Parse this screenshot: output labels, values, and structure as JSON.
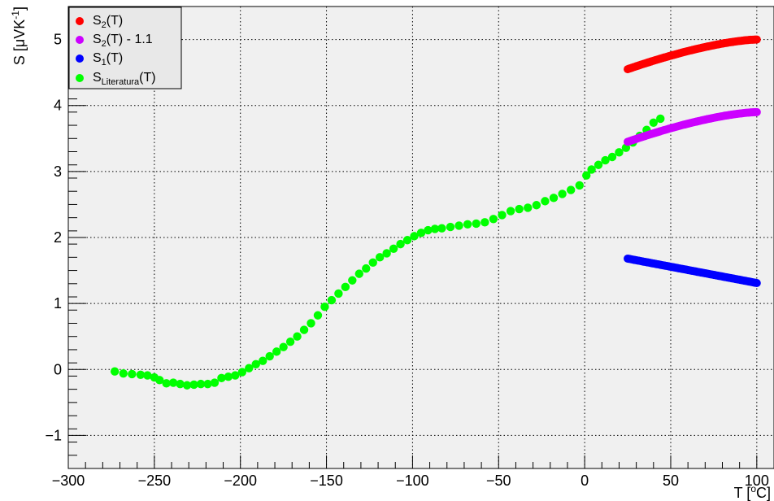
{
  "chart_data": {
    "type": "scatter",
    "xlim": [
      -300,
      110
    ],
    "ylim": [
      -1.5,
      5.5
    ],
    "x_ticks": [
      -300,
      -250,
      -200,
      -150,
      -100,
      -50,
      0,
      50,
      100
    ],
    "x_tick_labels": [
      "−300",
      "−250",
      "−200",
      "−150",
      "−100",
      "−50",
      "0",
      "50",
      "100"
    ],
    "y_ticks": [
      -1,
      0,
      1,
      2,
      3,
      4,
      5
    ],
    "y_tick_labels": [
      "−1",
      "0",
      "1",
      "2",
      "3",
      "4",
      "5"
    ],
    "grid": true,
    "legend_position": "top-left",
    "xlabel": {
      "main": "T [",
      "sup": "o",
      "tail": "C]"
    },
    "ylabel": {
      "main": "S [μVK",
      "sup": "-1",
      "tail": "]"
    },
    "series": [
      {
        "legend_main": "S",
        "legend_sub": "2",
        "legend_tail": "(T)",
        "color": "#ff0000",
        "generator": {
          "x_start": 25,
          "x_end": 100,
          "n": 90,
          "y_start": 4.55,
          "y_end": 5.0,
          "shape": "concave"
        },
        "points": []
      },
      {
        "legend_main": "S",
        "legend_sub": "2",
        "legend_tail": "(T) - 1.1",
        "color": "#cc00ff",
        "generator": {
          "x_start": 25,
          "x_end": 100,
          "n": 90,
          "y_start": 3.45,
          "y_end": 3.9,
          "shape": "concave"
        },
        "points": []
      },
      {
        "legend_main": "S",
        "legend_sub": "1",
        "legend_tail": "(T)",
        "color": "#0000ff",
        "generator": {
          "x_start": 25,
          "x_end": 100,
          "n": 90,
          "y_start": 1.68,
          "y_end": 1.31,
          "shape": "linear"
        },
        "points": []
      },
      {
        "legend_main": "S",
        "legend_sub": "Literatura",
        "legend_tail": "(T)",
        "color": "#00ff00",
        "points": [
          [
            -273,
            -0.03
          ],
          [
            -268,
            -0.06
          ],
          [
            -263,
            -0.07
          ],
          [
            -258,
            -0.08
          ],
          [
            -254,
            -0.09
          ],
          [
            -250,
            -0.12
          ],
          [
            -247,
            -0.16
          ],
          [
            -243,
            -0.21
          ],
          [
            -239,
            -0.2
          ],
          [
            -235,
            -0.22
          ],
          [
            -231,
            -0.24
          ],
          [
            -227,
            -0.23
          ],
          [
            -223,
            -0.22
          ],
          [
            -219,
            -0.22
          ],
          [
            -215,
            -0.2
          ],
          [
            -211,
            -0.13
          ],
          [
            -207,
            -0.11
          ],
          [
            -203,
            -0.09
          ],
          [
            -199,
            -0.04
          ],
          [
            -195,
            0.02
          ],
          [
            -191,
            0.08
          ],
          [
            -187,
            0.13
          ],
          [
            -183,
            0.2
          ],
          [
            -179,
            0.27
          ],
          [
            -175,
            0.34
          ],
          [
            -171,
            0.42
          ],
          [
            -167,
            0.5
          ],
          [
            -163,
            0.6
          ],
          [
            -159,
            0.7
          ],
          [
            -155,
            0.82
          ],
          [
            -151,
            0.95
          ],
          [
            -147,
            1.05
          ],
          [
            -143,
            1.15
          ],
          [
            -139,
            1.25
          ],
          [
            -135,
            1.35
          ],
          [
            -131,
            1.45
          ],
          [
            -127,
            1.53
          ],
          [
            -123,
            1.62
          ],
          [
            -119,
            1.7
          ],
          [
            -115,
            1.76
          ],
          [
            -111,
            1.83
          ],
          [
            -107,
            1.9
          ],
          [
            -103,
            1.96
          ],
          [
            -99,
            2.02
          ],
          [
            -95,
            2.07
          ],
          [
            -91,
            2.11
          ],
          [
            -87,
            2.13
          ],
          [
            -83,
            2.14
          ],
          [
            -78,
            2.16
          ],
          [
            -73,
            2.18
          ],
          [
            -68,
            2.2
          ],
          [
            -63,
            2.21
          ],
          [
            -58,
            2.23
          ],
          [
            -53,
            2.28
          ],
          [
            -48,
            2.34
          ],
          [
            -43,
            2.4
          ],
          [
            -38,
            2.43
          ],
          [
            -33,
            2.45
          ],
          [
            -28,
            2.49
          ],
          [
            -23,
            2.55
          ],
          [
            -18,
            2.6
          ],
          [
            -13,
            2.66
          ],
          [
            -8,
            2.72
          ],
          [
            -3,
            2.79
          ],
          [
            1,
            2.94
          ],
          [
            4,
            3.03
          ],
          [
            8,
            3.1
          ],
          [
            12,
            3.17
          ],
          [
            16,
            3.22
          ],
          [
            20,
            3.29
          ],
          [
            24,
            3.36
          ],
          [
            28,
            3.44
          ],
          [
            32,
            3.54
          ],
          [
            36,
            3.63
          ],
          [
            40,
            3.74
          ],
          [
            44,
            3.8
          ]
        ]
      }
    ]
  }
}
